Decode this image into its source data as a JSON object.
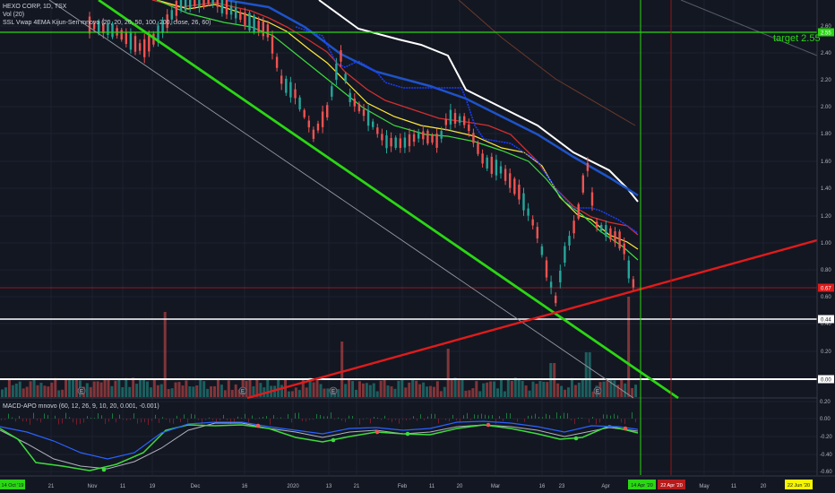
{
  "symbol_header": "HEXO CORP, 1D, TSX",
  "volume_label": "Vol (20)",
  "indicator_label": "SSL Vwap 4EMA Kijun-Sen mnovo (20, 20, 20, 50, 100, 200, close, 26, 60)",
  "macd_label": "MACD-APO mnovo (60, 12, 26, 9, 10, 20, 0.001, -0.001)",
  "target_label": "target 2.55",
  "colors": {
    "background": "#131722",
    "up_candle": "#26a69a",
    "down_candle": "#ef5350",
    "trend_green": "#2bd614",
    "trend_red": "#e01b1b",
    "white_line": "#ffffff",
    "blue_line": "#1e53c8",
    "yellow_line": "#ffeb3b"
  },
  "price_axis": {
    "ticks": [
      "2.60",
      "2.40",
      "2.20",
      "2.00",
      "1.80",
      "1.60",
      "1.40",
      "1.20",
      "1.00",
      "0.80",
      "0.60",
      "0.40",
      "0.20"
    ],
    "labels": [
      {
        "text": "2.55",
        "color": "#2bd614"
      },
      {
        "text": "0.67",
        "color": "#e01b1b"
      },
      {
        "text": "0.44",
        "color": "#ffffff"
      },
      {
        "text": "0.00",
        "color": "#ffffff"
      }
    ]
  },
  "macd_axis": {
    "ticks": [
      "0.20",
      "0.00",
      "-0.20",
      "-0.40",
      "-0.60"
    ]
  },
  "time_axis": {
    "ticks": [
      "21",
      "Nov",
      "11",
      "19",
      "Dec",
      "16",
      "2020",
      "13",
      "21",
      "Feb",
      "11",
      "20",
      "Mar",
      "16",
      "23",
      "Apr",
      "May",
      "11",
      "20"
    ],
    "highlights": [
      {
        "text": "14 Oct '19",
        "color": "#2bd614"
      },
      {
        "text": "14 Apr '20",
        "color": "#2bd614"
      },
      {
        "text": "22 Apr '20",
        "color": "#b71c1c"
      },
      {
        "text": "22 Jun '20",
        "color": "#f5f500"
      }
    ]
  },
  "event_markers": [
    "E",
    "E",
    "E",
    "E"
  ]
}
